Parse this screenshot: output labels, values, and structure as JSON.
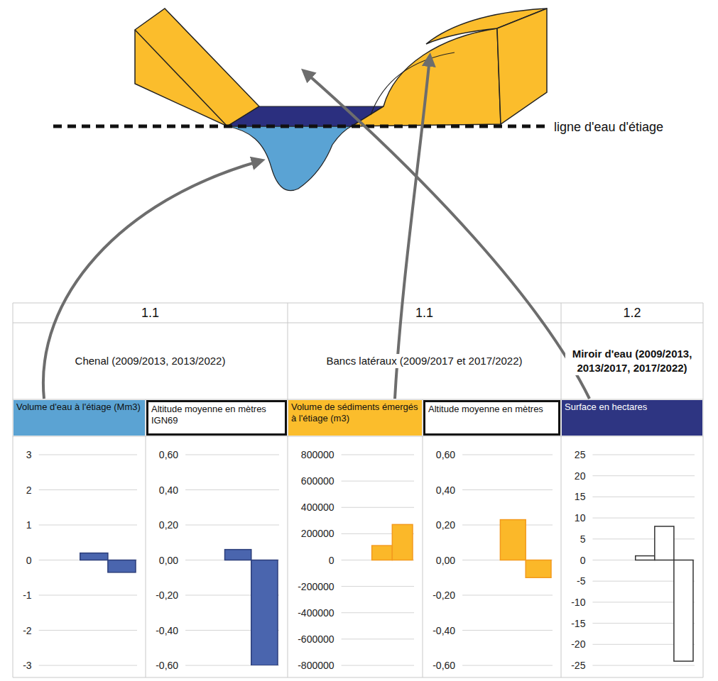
{
  "diagram": {
    "waterline_label": "ligne d'eau d'étiage"
  },
  "table": {
    "sections": [
      {
        "number": "1.1",
        "title": "Chenal (2009/2013, 2013/2022)"
      },
      {
        "number": "1.1",
        "title": "Bancs latéraux (2009/2017 et 2017/2022)"
      },
      {
        "number": "1.2",
        "title": "Miroir d'eau (2009/2013, 2013/2017, 2017/2022)"
      }
    ]
  },
  "chart_data": [
    {
      "type": "bar",
      "title": "Volume d'eau à l'étiage (Mm3)",
      "categories": [
        null,
        null
      ],
      "values": [
        0.2,
        -0.35
      ],
      "color": "#4a65ae",
      "ylim": [
        -3,
        3
      ],
      "yticks": [
        -3,
        -2,
        -1,
        0,
        1,
        2,
        3
      ],
      "grid": true,
      "tick_labels": "y"
    },
    {
      "type": "bar",
      "title": "Altitude moyenne en mètres IGN69",
      "categories": [
        null,
        null
      ],
      "values": [
        0.06,
        -0.6
      ],
      "color": "#4a65ae",
      "ylim": [
        -0.6,
        0.6
      ],
      "yticks": [
        {
          "value": -0.6,
          "label": "-0,60"
        },
        {
          "value": -0.4,
          "label": "-0,40"
        },
        {
          "value": -0.2,
          "label": "-0,20"
        },
        {
          "value": 0,
          "label": "0,00"
        },
        {
          "value": 0.2,
          "label": "0,20"
        },
        {
          "value": 0.4,
          "label": "0,40"
        },
        {
          "value": 0.6,
          "label": "0,60"
        }
      ],
      "grid": true,
      "tick_labels": "y"
    },
    {
      "type": "bar",
      "title": "Volume de sédiments émergés à l'étiage (m3)",
      "categories": [
        null,
        null
      ],
      "values": [
        110000,
        270000
      ],
      "color": "#fbb829",
      "ylim": [
        -800000,
        800000
      ],
      "yticks": [
        -800000,
        -600000,
        -400000,
        -200000,
        0,
        200000,
        400000,
        600000,
        800000
      ],
      "grid": true,
      "tick_labels": "y"
    },
    {
      "type": "bar",
      "title": "Altitude moyenne en mètres",
      "categories": [
        null,
        null
      ],
      "values": [
        0.23,
        -0.1
      ],
      "color": "#fbb829",
      "ylim": [
        -0.6,
        0.6
      ],
      "yticks": [
        {
          "value": -0.6,
          "label": "-0,60"
        },
        {
          "value": -0.4,
          "label": "-0,40"
        },
        {
          "value": -0.2,
          "label": "-0,20"
        },
        {
          "value": 0,
          "label": "0,00"
        },
        {
          "value": 0.2,
          "label": "0,20"
        },
        {
          "value": 0.4,
          "label": "0,40"
        },
        {
          "value": 0.6,
          "label": "0,60"
        }
      ],
      "grid": true,
      "tick_labels": "y"
    },
    {
      "type": "bar",
      "title": "Surface en hectares",
      "categories": [
        null,
        null,
        null
      ],
      "values": [
        1,
        8,
        -24
      ],
      "color": "#ffffff",
      "ylim": [
        -25,
        25
      ],
      "yticks": [
        -25,
        -20,
        -15,
        -10,
        -5,
        0,
        5,
        10,
        15,
        20,
        25
      ],
      "grid": true,
      "tick_labels": "y"
    }
  ]
}
